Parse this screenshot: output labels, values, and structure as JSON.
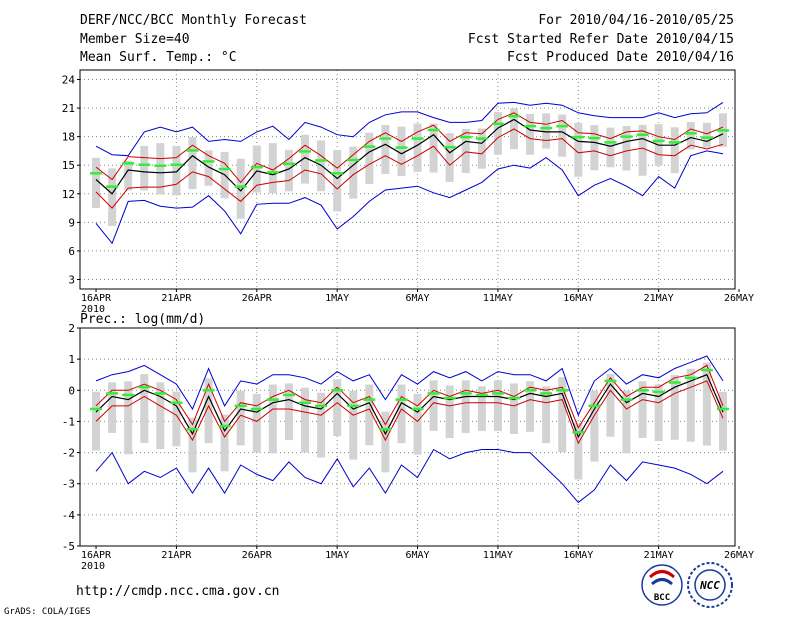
{
  "header": {
    "left": [
      "DERF/NCC/BCC Monthly Forecast",
      "Member Size=40",
      "Mean Surf. Temp.: °C"
    ],
    "right": [
      "For 2010/04/16-2010/05/25",
      "Fcst Started Refer Date 2010/04/15",
      "Fcst Produced Date 2010/04/16"
    ]
  },
  "footer": {
    "url": "http://cmdp.ncc.cma.gov.cn",
    "grads": "GrADS: COLA/IGES",
    "logo_bcc": "BCC",
    "logo_ncc": "NCC"
  },
  "colors": {
    "mean": "#000000",
    "std": "#cc0000",
    "extreme": "#0000cc",
    "box": "#d3d3d3",
    "marker": "#33ee33",
    "grid": "#888888"
  },
  "chart_data": [
    {
      "type": "line",
      "title": "",
      "xlabel": "",
      "ylabel": "",
      "ylim": [
        2,
        25
      ],
      "yticks": [
        3,
        6,
        9,
        12,
        15,
        18,
        21,
        24
      ],
      "x_tick_labels": [
        "16APR",
        "21APR",
        "26APR",
        "1MAY",
        "6MAY",
        "11MAY",
        "16MAY",
        "21MAY",
        "26MAY"
      ],
      "year_label": "2010",
      "days": 40,
      "series": [
        {
          "name": "max",
          "values": [
            8.9,
            6.8,
            11.2,
            11.3,
            10.7,
            10.5,
            10.6,
            11.8,
            10.2,
            7.8,
            10.9,
            11.0,
            11.0,
            11.6,
            10.8,
            8.3,
            9.6,
            11.2,
            12.4,
            12.6,
            12.8,
            12.1,
            11.6,
            12.4,
            13.2,
            14.6,
            15.0,
            14.7,
            15.8,
            14.5,
            11.8,
            12.9,
            13.6,
            12.8,
            11.8,
            13.8,
            12.6,
            16.0,
            16.5,
            16.2
          ]
        },
        {
          "name": "mean_plus_std",
          "values": [
            14.8,
            13.5,
            15.9,
            15.8,
            15.7,
            15.8,
            17.1,
            16.0,
            15.2,
            13.2,
            15.2,
            14.5,
            15.7,
            17.1,
            16.0,
            14.7,
            16.1,
            17.5,
            18.4,
            17.5,
            18.5,
            19.2,
            17.5,
            18.4,
            18.3,
            19.8,
            20.5,
            19.5,
            19.3,
            19.7,
            18.4,
            18.3,
            17.8,
            18.5,
            18.6,
            18.0,
            17.7,
            18.8,
            18.3,
            19.0
          ]
        },
        {
          "name": "mean",
          "values": [
            13.5,
            12.0,
            14.5,
            14.3,
            14.2,
            14.3,
            16.0,
            14.8,
            14.0,
            12.3,
            14.4,
            14.0,
            14.6,
            15.8,
            15.0,
            13.6,
            15.0,
            16.4,
            17.2,
            16.2,
            17.1,
            18.2,
            16.3,
            17.5,
            17.3,
            18.9,
            19.8,
            18.7,
            18.5,
            18.5,
            17.5,
            17.4,
            17.0,
            17.5,
            17.8,
            17.1,
            17.1,
            17.9,
            17.5,
            18.3
          ]
        },
        {
          "name": "mean_minus_std",
          "values": [
            12.2,
            10.5,
            12.6,
            12.7,
            12.7,
            13.0,
            14.3,
            13.8,
            12.5,
            11.2,
            12.9,
            13.2,
            13.4,
            14.5,
            14.1,
            12.5,
            14.0,
            15.1,
            16.0,
            15.1,
            16.0,
            17.0,
            15.0,
            16.4,
            16.2,
            17.9,
            18.8,
            17.8,
            17.6,
            17.8,
            16.3,
            16.5,
            16.0,
            16.5,
            16.8,
            16.1,
            16.0,
            17.1,
            16.7,
            17.2
          ]
        },
        {
          "name": "min",
          "values": [
            17.0,
            16.1,
            16.0,
            18.5,
            19.0,
            18.5,
            19.0,
            17.5,
            17.7,
            17.5,
            18.5,
            19.1,
            17.7,
            19.5,
            19.0,
            18.2,
            18.0,
            19.5,
            20.3,
            20.6,
            20.6,
            20.0,
            19.5,
            19.5,
            19.7,
            21.5,
            21.6,
            21.3,
            21.5,
            21.3,
            20.5,
            20.2,
            20.0,
            20.0,
            20.0,
            20.5,
            20.0,
            20.4,
            20.5,
            21.6
          ]
        }
      ]
    },
    {
      "type": "line",
      "title": "Prec.: log(mm/d)",
      "xlabel": "",
      "ylabel": "",
      "ylim": [
        -5,
        2
      ],
      "yticks": [
        -5,
        -4,
        -3,
        -2,
        -1,
        0,
        1,
        2
      ],
      "x_tick_labels": [
        "16APR",
        "21APR",
        "26APR",
        "1MAY",
        "6MAY",
        "11MAY",
        "16MAY",
        "21MAY",
        "26MAY"
      ],
      "year_label": "2010",
      "days": 40,
      "series": [
        {
          "name": "max",
          "values": [
            0.3,
            0.5,
            0.6,
            0.8,
            0.5,
            0.2,
            -0.6,
            0.7,
            -0.5,
            0.3,
            0.2,
            0.5,
            0.5,
            0.4,
            0.2,
            0.6,
            0.3,
            0.5,
            -0.3,
            0.5,
            0.2,
            0.6,
            0.4,
            0.6,
            0.3,
            0.6,
            0.5,
            0.5,
            0.3,
            0.7,
            -0.8,
            0.3,
            0.7,
            0.2,
            0.5,
            0.4,
            0.7,
            0.9,
            1.1,
            0.3
          ]
        },
        {
          "name": "mean_plus_std",
          "values": [
            -0.5,
            0.0,
            0.0,
            0.2,
            0.0,
            -0.3,
            -1.1,
            0.2,
            -1.0,
            -0.4,
            -0.5,
            -0.2,
            0.0,
            -0.3,
            -0.4,
            0.1,
            -0.4,
            -0.2,
            -1.1,
            -0.2,
            -0.5,
            0.0,
            -0.2,
            0.0,
            -0.1,
            0.0,
            -0.2,
            0.1,
            0.0,
            0.1,
            -1.2,
            -0.4,
            0.4,
            -0.2,
            0.1,
            0.1,
            0.4,
            0.5,
            0.8,
            -0.5
          ]
        },
        {
          "name": "mean",
          "values": [
            -0.7,
            -0.2,
            -0.3,
            0.0,
            -0.2,
            -0.5,
            -1.4,
            -0.2,
            -1.3,
            -0.6,
            -0.7,
            -0.4,
            -0.3,
            -0.5,
            -0.6,
            -0.1,
            -0.6,
            -0.4,
            -1.4,
            -0.4,
            -0.7,
            -0.2,
            -0.3,
            -0.2,
            -0.2,
            -0.2,
            -0.3,
            -0.1,
            -0.2,
            -0.1,
            -1.5,
            -0.6,
            0.2,
            -0.4,
            -0.1,
            -0.2,
            0.1,
            0.3,
            0.5,
            -0.7
          ]
        },
        {
          "name": "mean_minus_std",
          "values": [
            -1.0,
            -0.5,
            -0.5,
            -0.2,
            -0.5,
            -0.8,
            -1.6,
            -0.5,
            -1.5,
            -0.8,
            -1.0,
            -0.6,
            -0.6,
            -0.7,
            -0.8,
            -0.4,
            -0.8,
            -0.6,
            -1.6,
            -0.6,
            -1.0,
            -0.4,
            -0.5,
            -0.4,
            -0.4,
            -0.4,
            -0.5,
            -0.3,
            -0.4,
            -0.3,
            -1.7,
            -0.8,
            0.0,
            -0.6,
            -0.3,
            -0.4,
            -0.1,
            0.1,
            0.3,
            -0.9
          ]
        },
        {
          "name": "min",
          "values": [
            -2.6,
            -2.0,
            -3.0,
            -2.6,
            -2.8,
            -2.5,
            -3.3,
            -2.5,
            -3.3,
            -2.4,
            -2.7,
            -2.9,
            -2.3,
            -2.8,
            -3.0,
            -2.2,
            -3.1,
            -2.5,
            -3.3,
            -2.4,
            -2.8,
            -1.9,
            -2.2,
            -2.0,
            -1.9,
            -1.9,
            -2.0,
            -2.0,
            -2.5,
            -3.0,
            -3.6,
            -3.2,
            -2.4,
            -2.9,
            -2.3,
            -2.4,
            -2.5,
            -2.7,
            -3.0,
            -2.6
          ]
        }
      ]
    }
  ]
}
